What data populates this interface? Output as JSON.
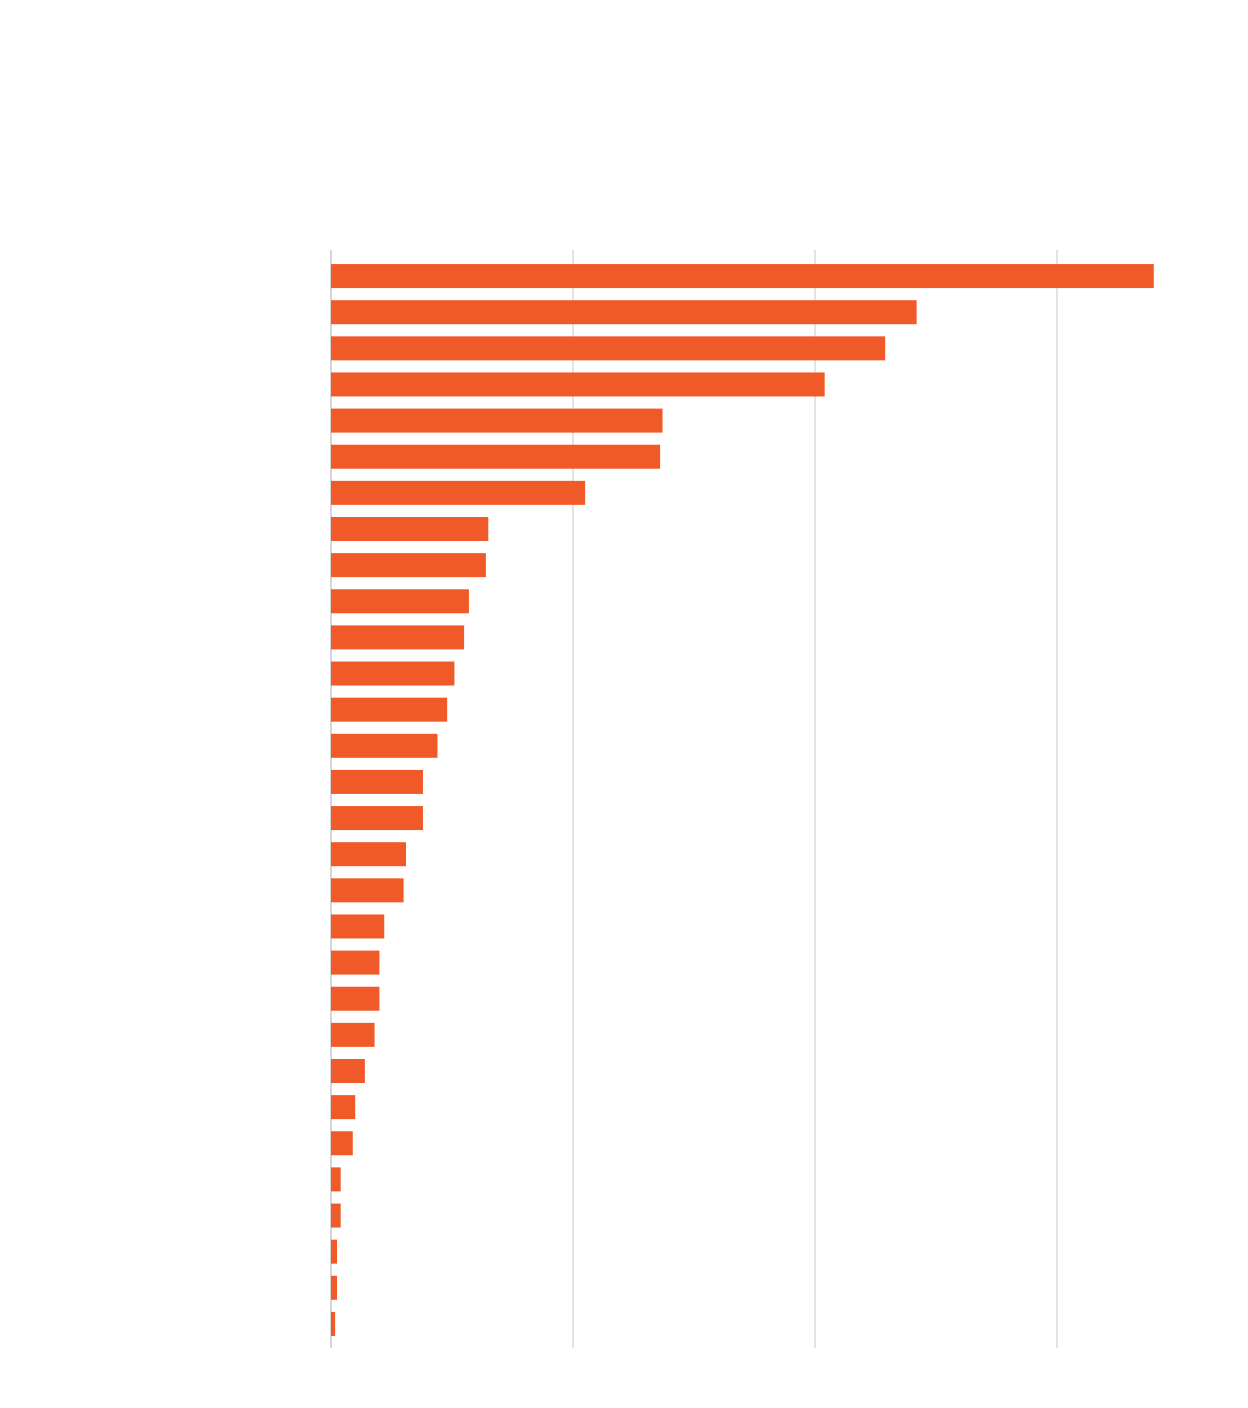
{
  "chart_data": {
    "type": "bar",
    "orientation": "horizontal",
    "categories": [
      null,
      null,
      null,
      null,
      null,
      null,
      null,
      null,
      null,
      null,
      null,
      null,
      null,
      null,
      null,
      null,
      null,
      null,
      null,
      null,
      null,
      null,
      null,
      null,
      null,
      null,
      null,
      null,
      null,
      null
    ],
    "values": [
      340,
      242,
      229,
      204,
      137,
      136,
      105,
      65,
      64,
      57,
      55,
      51,
      48,
      44,
      38,
      38,
      31,
      30,
      22,
      20,
      20,
      18,
      14,
      10,
      9,
      4,
      4,
      2.5,
      2.5,
      1.7
    ],
    "color": "#f05a28",
    "xlim": [
      0,
      350
    ],
    "xticks": [
      0,
      100,
      200,
      300
    ],
    "grid": true
  }
}
